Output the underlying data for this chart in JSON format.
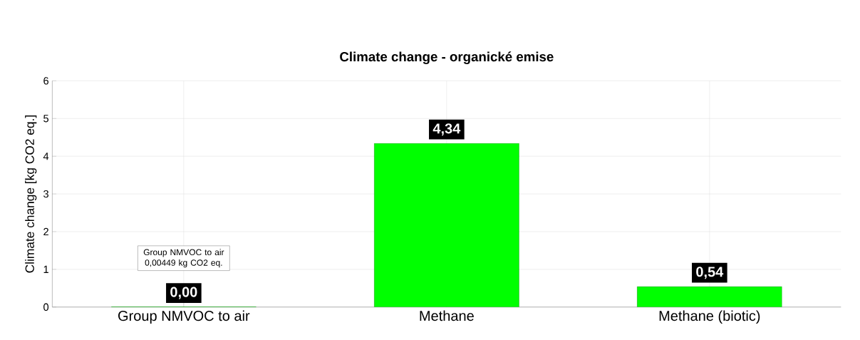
{
  "chart_data": {
    "type": "bar",
    "title": "Climate change - organické emise",
    "ylabel": "Climate change [kg CO2 eq.]",
    "categories": [
      "Group NMVOC to air",
      "Methane",
      "Methane (biotic)"
    ],
    "values": [
      0.00449,
      4.34,
      0.54
    ],
    "value_labels": [
      "0,00",
      "4,34",
      "0,54"
    ],
    "color": "#00ff00",
    "ylim": [
      0,
      6
    ],
    "yticks": [
      0,
      1,
      2,
      3,
      4,
      5,
      6
    ],
    "grid": true,
    "annotations": [
      "Group NMVOC to air 0,00449 kg CO2 eq."
    ]
  }
}
